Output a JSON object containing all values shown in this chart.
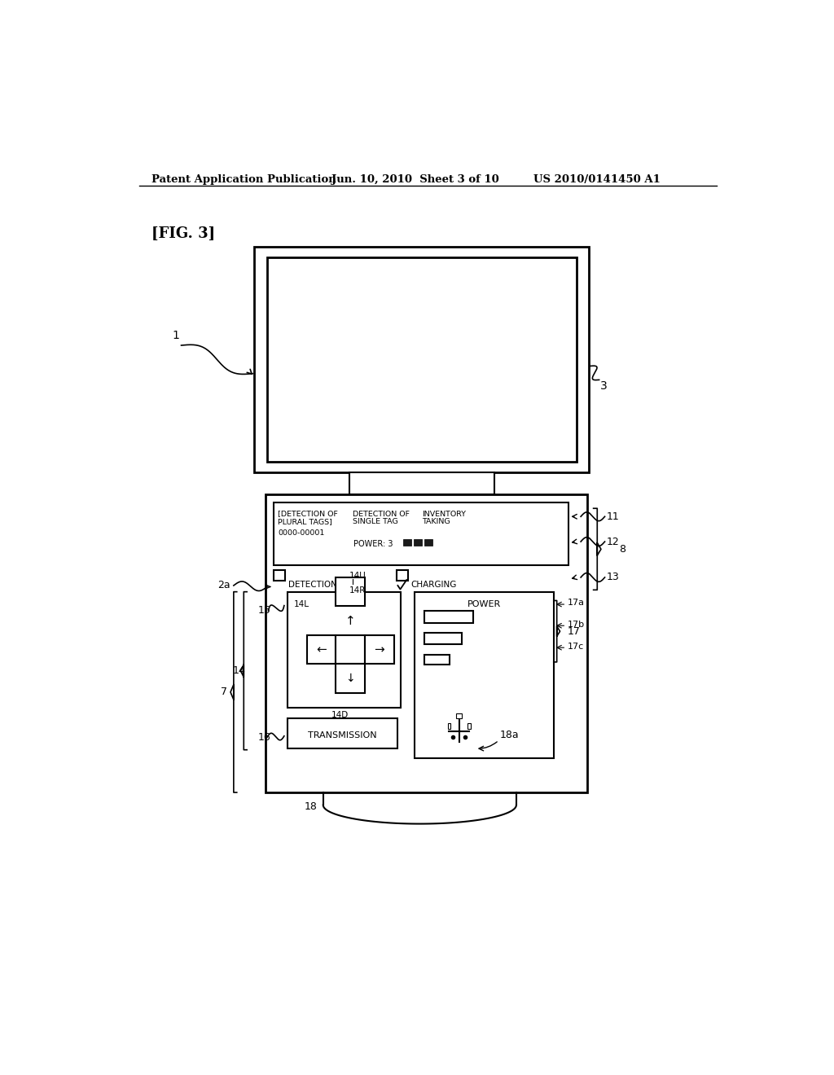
{
  "bg_color": "#ffffff",
  "header_left": "Patent Application Publication",
  "header_mid": "Jun. 10, 2010  Sheet 3 of 10",
  "header_right": "US 2010/0141450 A1",
  "fig_label": "[FIG. 3]",
  "label_1": "1",
  "label_3": "3",
  "label_2a": "2a",
  "label_8": "8",
  "label_11": "11",
  "label_12": "12",
  "label_13": "13",
  "label_14": "14",
  "label_14U": "14U",
  "label_14R": "14R",
  "label_14L": "14L",
  "label_14D": "14D",
  "label_15": "15",
  "label_16": "16",
  "label_17": "17",
  "label_17a": "17a",
  "label_17b": "17b",
  "label_17c": "17c",
  "label_18": "18",
  "label_18a": "18a",
  "label_7": "7",
  "text_detection_plural": "[DETECTION OF\nPLURAL TAGS]",
  "text_detection_single": "DETECTION OF\nSINGLE TAG",
  "text_inventory": "INVENTORY\nTAKING",
  "text_id": "0000-00001",
  "text_power": "POWER: 3",
  "text_detection": "DETECTION",
  "text_charging": "CHARGING",
  "text_power2": "POWER",
  "text_transmission": "TRANSMISSION",
  "arrow_up": "↑",
  "arrow_down": "↓",
  "arrow_left": "←",
  "arrow_right": "→"
}
